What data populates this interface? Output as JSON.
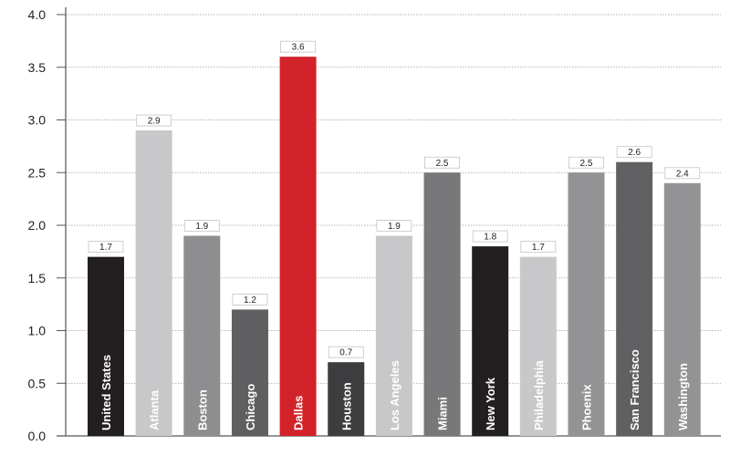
{
  "chart_data": {
    "type": "bar",
    "categories": [
      "United States",
      "Atlanta",
      "Boston",
      "Chicago",
      "Dallas",
      "Houston",
      "Los Angeles",
      "Miami",
      "New York",
      "Philadelphia",
      "Phoenix",
      "San Francisco",
      "Washington"
    ],
    "values": [
      1.7,
      2.9,
      1.9,
      1.2,
      3.6,
      0.7,
      1.9,
      2.5,
      1.8,
      1.7,
      2.5,
      2.6,
      2.4
    ],
    "value_labels": [
      "1.7",
      "2.9",
      "1.9",
      "1.2",
      "3.6",
      "0.7",
      "1.9",
      "2.5",
      "1.8",
      "1.7",
      "2.5",
      "2.6",
      "2.4"
    ],
    "colors": [
      "#231f20",
      "#c8c8ca",
      "#8e8e91",
      "#5f5f62",
      "#d2232a",
      "#3d3d3f",
      "#c8c8ca",
      "#78787b",
      "#231f20",
      "#c8c8ca",
      "#939396",
      "#606063",
      "#939396"
    ],
    "yticks": [
      "0.0",
      "0.5",
      "1.0",
      "1.5",
      "2.0",
      "2.5",
      "3.0",
      "3.5",
      "4.0"
    ],
    "ylim": [
      0,
      4
    ],
    "grid": true,
    "title": "",
    "xlabel": "",
    "ylabel": ""
  }
}
